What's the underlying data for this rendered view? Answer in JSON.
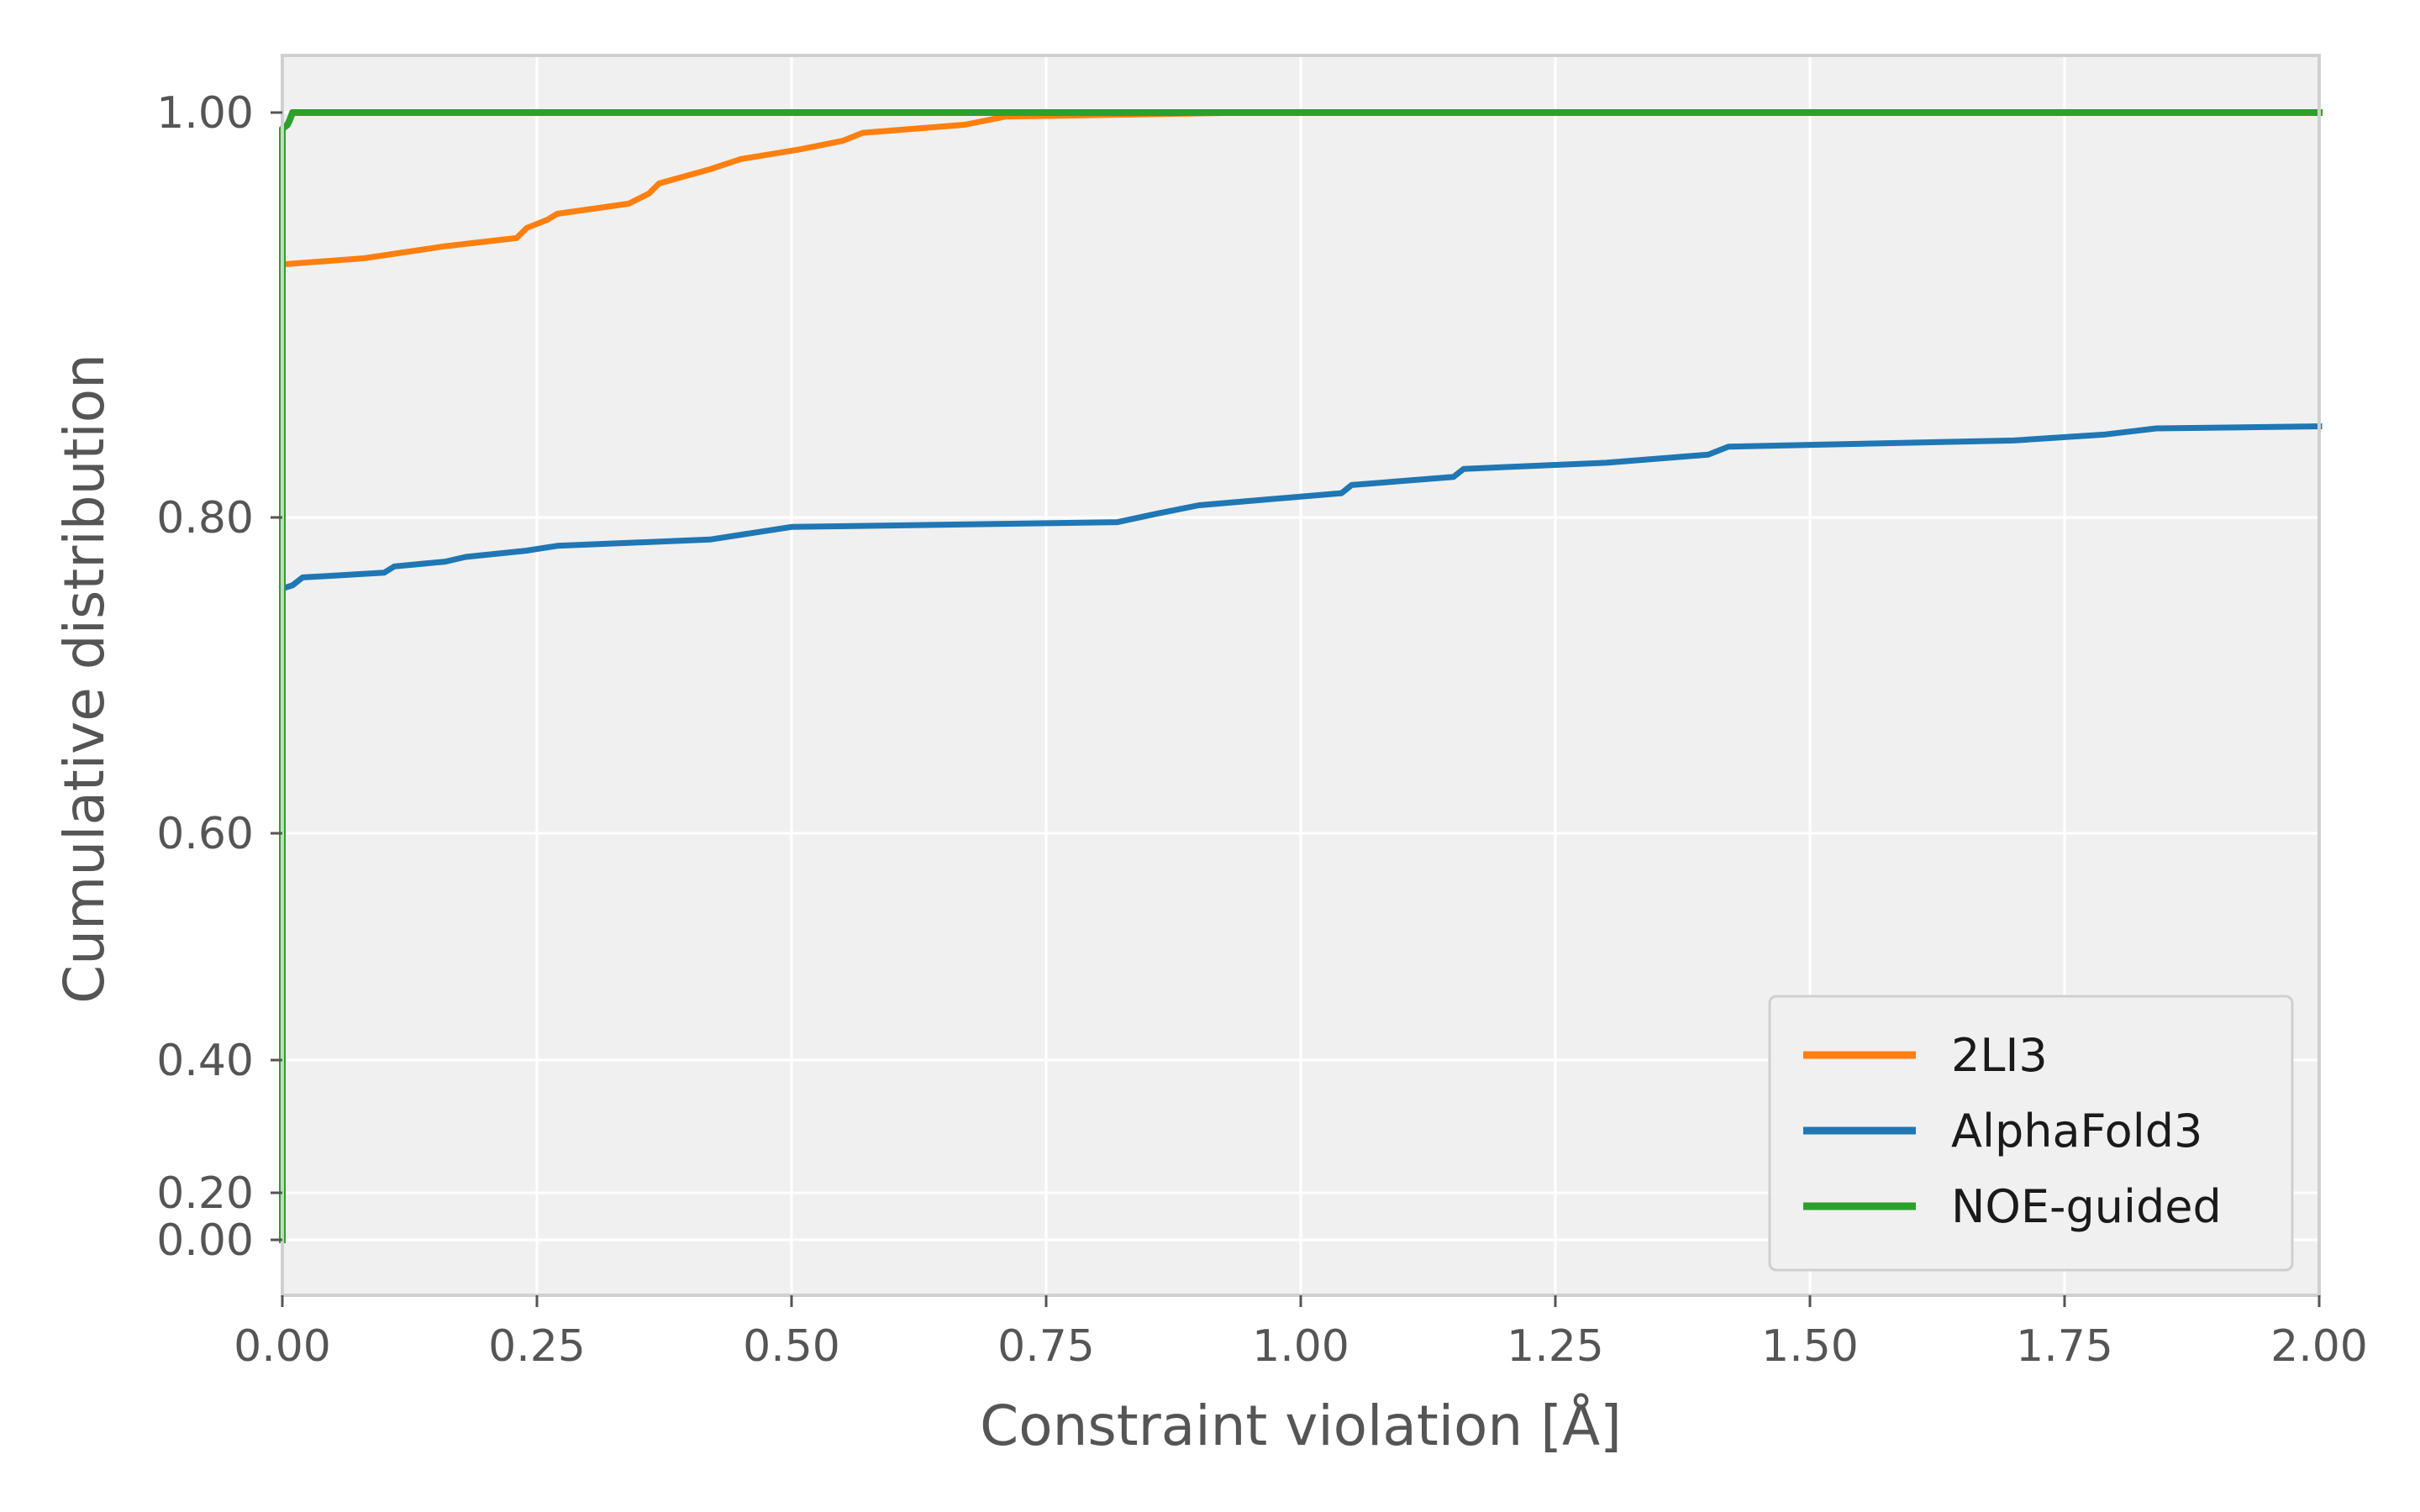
{
  "chart_data": {
    "type": "line",
    "title": "",
    "xlabel": "Constraint violation [Å]",
    "ylabel": "Cumulative distribution",
    "xlim": [
      0,
      2
    ],
    "ylim": [
      -0.03,
      1.03
    ],
    "x_ticks": [
      "0.00",
      "0.25",
      "0.50",
      "0.75",
      "1.00",
      "1.25",
      "1.50",
      "1.75",
      "2.00"
    ],
    "y_ticks": [
      {
        "value": 0.0,
        "label": "0.00"
      },
      {
        "value": 0.2,
        "label": "0.20"
      },
      {
        "value": 0.4,
        "label": "0.40"
      },
      {
        "value": 0.6,
        "label": "0.60"
      },
      {
        "value": 0.8,
        "label": "0.80"
      },
      {
        "value": 1.0,
        "label": "1.00"
      }
    ],
    "y_scale_note": "nonlinear y axis; tick positions follow the printed labels",
    "grid": true,
    "legend_position": "lower right",
    "colors": {
      "background": "#f0f0f0",
      "grid": "#ffffff",
      "spine": "#d0d0d0"
    },
    "series": [
      {
        "name": "2LI3",
        "color": "#ff7f0e",
        "x": [
          0.0,
          0.08,
          0.16,
          0.23,
          0.24,
          0.26,
          0.27,
          0.34,
          0.36,
          0.37,
          0.42,
          0.45,
          0.51,
          0.55,
          0.57,
          0.67,
          0.71,
          0.95,
          2.0
        ],
        "y": [
          0.925,
          0.928,
          0.934,
          0.938,
          0.943,
          0.947,
          0.95,
          0.955,
          0.96,
          0.965,
          0.972,
          0.977,
          0.982,
          0.986,
          0.99,
          0.994,
          0.998,
          1.0,
          1.0
        ]
      },
      {
        "name": "AlphaFold3",
        "color": "#1f77b4",
        "x": [
          0.0,
          0.01,
          0.02,
          0.1,
          0.11,
          0.16,
          0.18,
          0.24,
          0.27,
          0.42,
          0.5,
          0.82,
          0.86,
          0.9,
          1.04,
          1.05,
          1.15,
          1.16,
          1.3,
          1.4,
          1.42,
          1.7,
          1.79,
          1.84,
          2.0
        ],
        "y": [
          0.755,
          0.757,
          0.762,
          0.765,
          0.769,
          0.772,
          0.775,
          0.779,
          0.782,
          0.786,
          0.794,
          0.797,
          0.802,
          0.806,
          0.812,
          0.816,
          0.82,
          0.824,
          0.827,
          0.831,
          0.835,
          0.838,
          0.841,
          0.844,
          0.845
        ]
      },
      {
        "name": "NOE-guided",
        "color": "#2ca02c",
        "x": [
          0.0,
          0.0,
          0.005,
          0.007,
          0.01,
          2.0
        ],
        "y": [
          0.0,
          0.992,
          0.994,
          0.996,
          1.0,
          1.0
        ]
      }
    ]
  }
}
